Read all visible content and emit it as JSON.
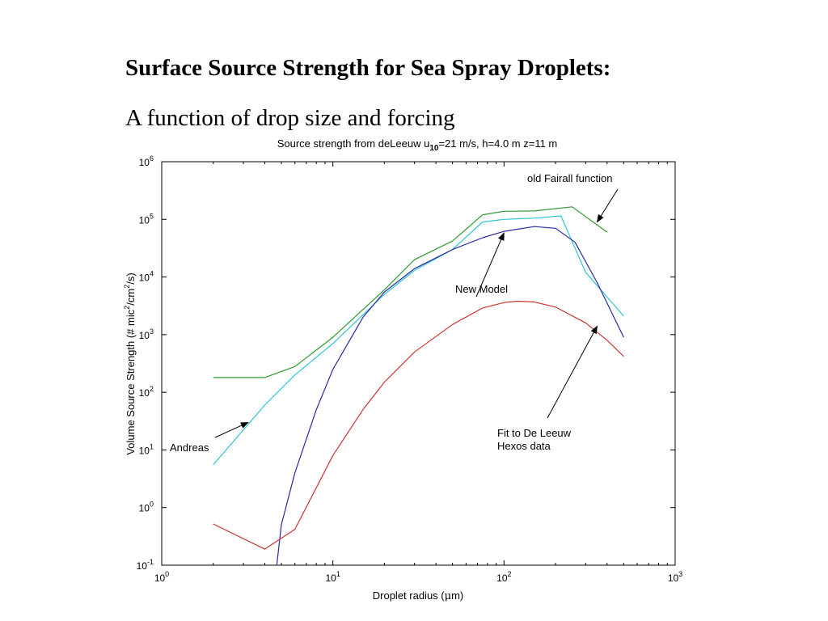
{
  "slide": {
    "title": "Surface Source Strength for Sea Spray Droplets:",
    "subtitle": "A function of drop size and forcing"
  },
  "chart_data": {
    "type": "line",
    "title": {
      "pre": "Source strength from deLeeuw u",
      "sub": "10",
      "post": "=21 m/s, h=4.0 m z=11 m"
    },
    "xlabel": {
      "pre": "Droplet radius (",
      "mu": "μ",
      "post": "m)"
    },
    "ylabel": {
      "a": "Volume Source Strength (# mic",
      "b": "2",
      "c": "/cm",
      "d": "2",
      "e": "/s)"
    },
    "x_scale": "log",
    "y_scale": "log",
    "xlim": [
      1,
      1000
    ],
    "ylim": [
      0.1,
      1000000
    ],
    "x_ticks": [
      {
        "base": "10",
        "exp": "0",
        "value": 1
      },
      {
        "base": "10",
        "exp": "1",
        "value": 10
      },
      {
        "base": "10",
        "exp": "2",
        "value": 100
      },
      {
        "base": "10",
        "exp": "3",
        "value": 1000
      }
    ],
    "y_ticks": [
      {
        "base": "10",
        "exp": "-1",
        "value": 0.1
      },
      {
        "base": "10",
        "exp": "0",
        "value": 1
      },
      {
        "base": "10",
        "exp": "1",
        "value": 10
      },
      {
        "base": "10",
        "exp": "2",
        "value": 100
      },
      {
        "base": "10",
        "exp": "3",
        "value": 1000
      },
      {
        "base": "10",
        "exp": "4",
        "value": 10000
      },
      {
        "base": "10",
        "exp": "5",
        "value": 100000
      },
      {
        "base": "10",
        "exp": "6",
        "value": 1000000
      }
    ],
    "grid": false,
    "series": [
      {
        "color": "#2e9a2e",
        "points": [
          [
            2,
            180
          ],
          [
            4,
            180
          ],
          [
            6,
            280
          ],
          [
            10,
            900
          ],
          [
            20,
            6000
          ],
          [
            30,
            20000
          ],
          [
            50,
            42000
          ],
          [
            75,
            120000
          ],
          [
            100,
            138000
          ],
          [
            150,
            140000
          ],
          [
            250,
            165000
          ],
          [
            400,
            60000
          ]
        ]
      },
      {
        "color": "#2ec4d6",
        "points": [
          [
            2,
            5.5
          ],
          [
            4,
            60
          ],
          [
            6,
            200
          ],
          [
            10,
            700
          ],
          [
            20,
            5000
          ],
          [
            30,
            13000
          ],
          [
            50,
            30000
          ],
          [
            75,
            90000
          ],
          [
            100,
            100000
          ],
          [
            150,
            105000
          ],
          [
            215,
            115000
          ],
          [
            300,
            12000
          ],
          [
            500,
            2100
          ]
        ]
      },
      {
        "color": "#2a2aa0",
        "points": [
          [
            4.7,
            0.1
          ],
          [
            5,
            0.5
          ],
          [
            6,
            4
          ],
          [
            8,
            50
          ],
          [
            10,
            250
          ],
          [
            15,
            2000
          ],
          [
            20,
            5500
          ],
          [
            30,
            14000
          ],
          [
            50,
            30000
          ],
          [
            75,
            48000
          ],
          [
            100,
            62000
          ],
          [
            150,
            75000
          ],
          [
            200,
            70000
          ],
          [
            260,
            40000
          ],
          [
            350,
            8000
          ],
          [
            500,
            900
          ]
        ]
      },
      {
        "color": "#d23232",
        "points": [
          [
            2,
            0.52
          ],
          [
            4,
            0.19
          ],
          [
            6,
            0.42
          ],
          [
            10,
            8
          ],
          [
            15,
            50
          ],
          [
            20,
            150
          ],
          [
            30,
            500
          ],
          [
            50,
            1500
          ],
          [
            75,
            2900
          ],
          [
            100,
            3600
          ],
          [
            120,
            3800
          ],
          [
            150,
            3700
          ],
          [
            200,
            3000
          ],
          [
            300,
            1600
          ],
          [
            400,
            800
          ],
          [
            500,
            420
          ]
        ]
      }
    ],
    "annotations": [
      {
        "text": "old Fairall function",
        "target": [
          350,
          90000
        ]
      },
      {
        "text": "New Model",
        "target": [
          100,
          58000
        ]
      },
      {
        "text": "Andreas",
        "target": [
          3.2,
          30
        ]
      },
      {
        "text": "Fit to De Leeuw",
        "text2": "Hexos data",
        "target": [
          350,
          1400
        ]
      }
    ]
  }
}
